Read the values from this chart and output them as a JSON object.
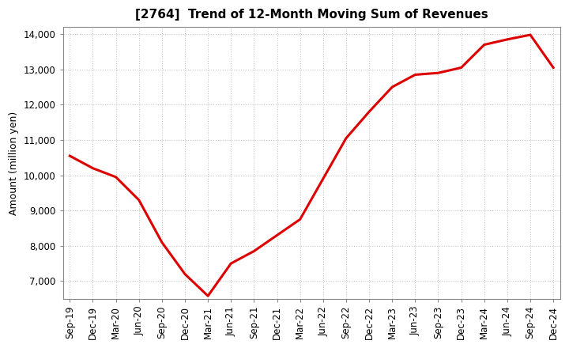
{
  "title": "[2764]  Trend of 12-Month Moving Sum of Revenues",
  "ylabel": "Amount (million yen)",
  "line_color": "#dd0000",
  "line_width": 2.2,
  "background_color": "#ffffff",
  "plot_bg_color": "#ffffff",
  "grid_color": "#bbbbbb",
  "ylim": [
    6500,
    14200
  ],
  "yticks": [
    7000,
    8000,
    9000,
    10000,
    11000,
    12000,
    13000,
    14000
  ],
  "x_labels": [
    "Sep-19",
    "Dec-19",
    "Mar-20",
    "Jun-20",
    "Sep-20",
    "Dec-20",
    "Mar-21",
    "Jun-21",
    "Sep-21",
    "Dec-21",
    "Mar-22",
    "Jun-22",
    "Sep-22",
    "Dec-22",
    "Mar-23",
    "Jun-23",
    "Sep-23",
    "Dec-23",
    "Mar-24",
    "Jun-24",
    "Sep-24",
    "Dec-24"
  ],
  "y_values": [
    10550,
    10200,
    9950,
    9300,
    8100,
    7200,
    6580,
    7500,
    7850,
    8300,
    8750,
    9900,
    11050,
    11800,
    12500,
    12850,
    12900,
    13050,
    13700,
    13850,
    13980,
    13050
  ]
}
